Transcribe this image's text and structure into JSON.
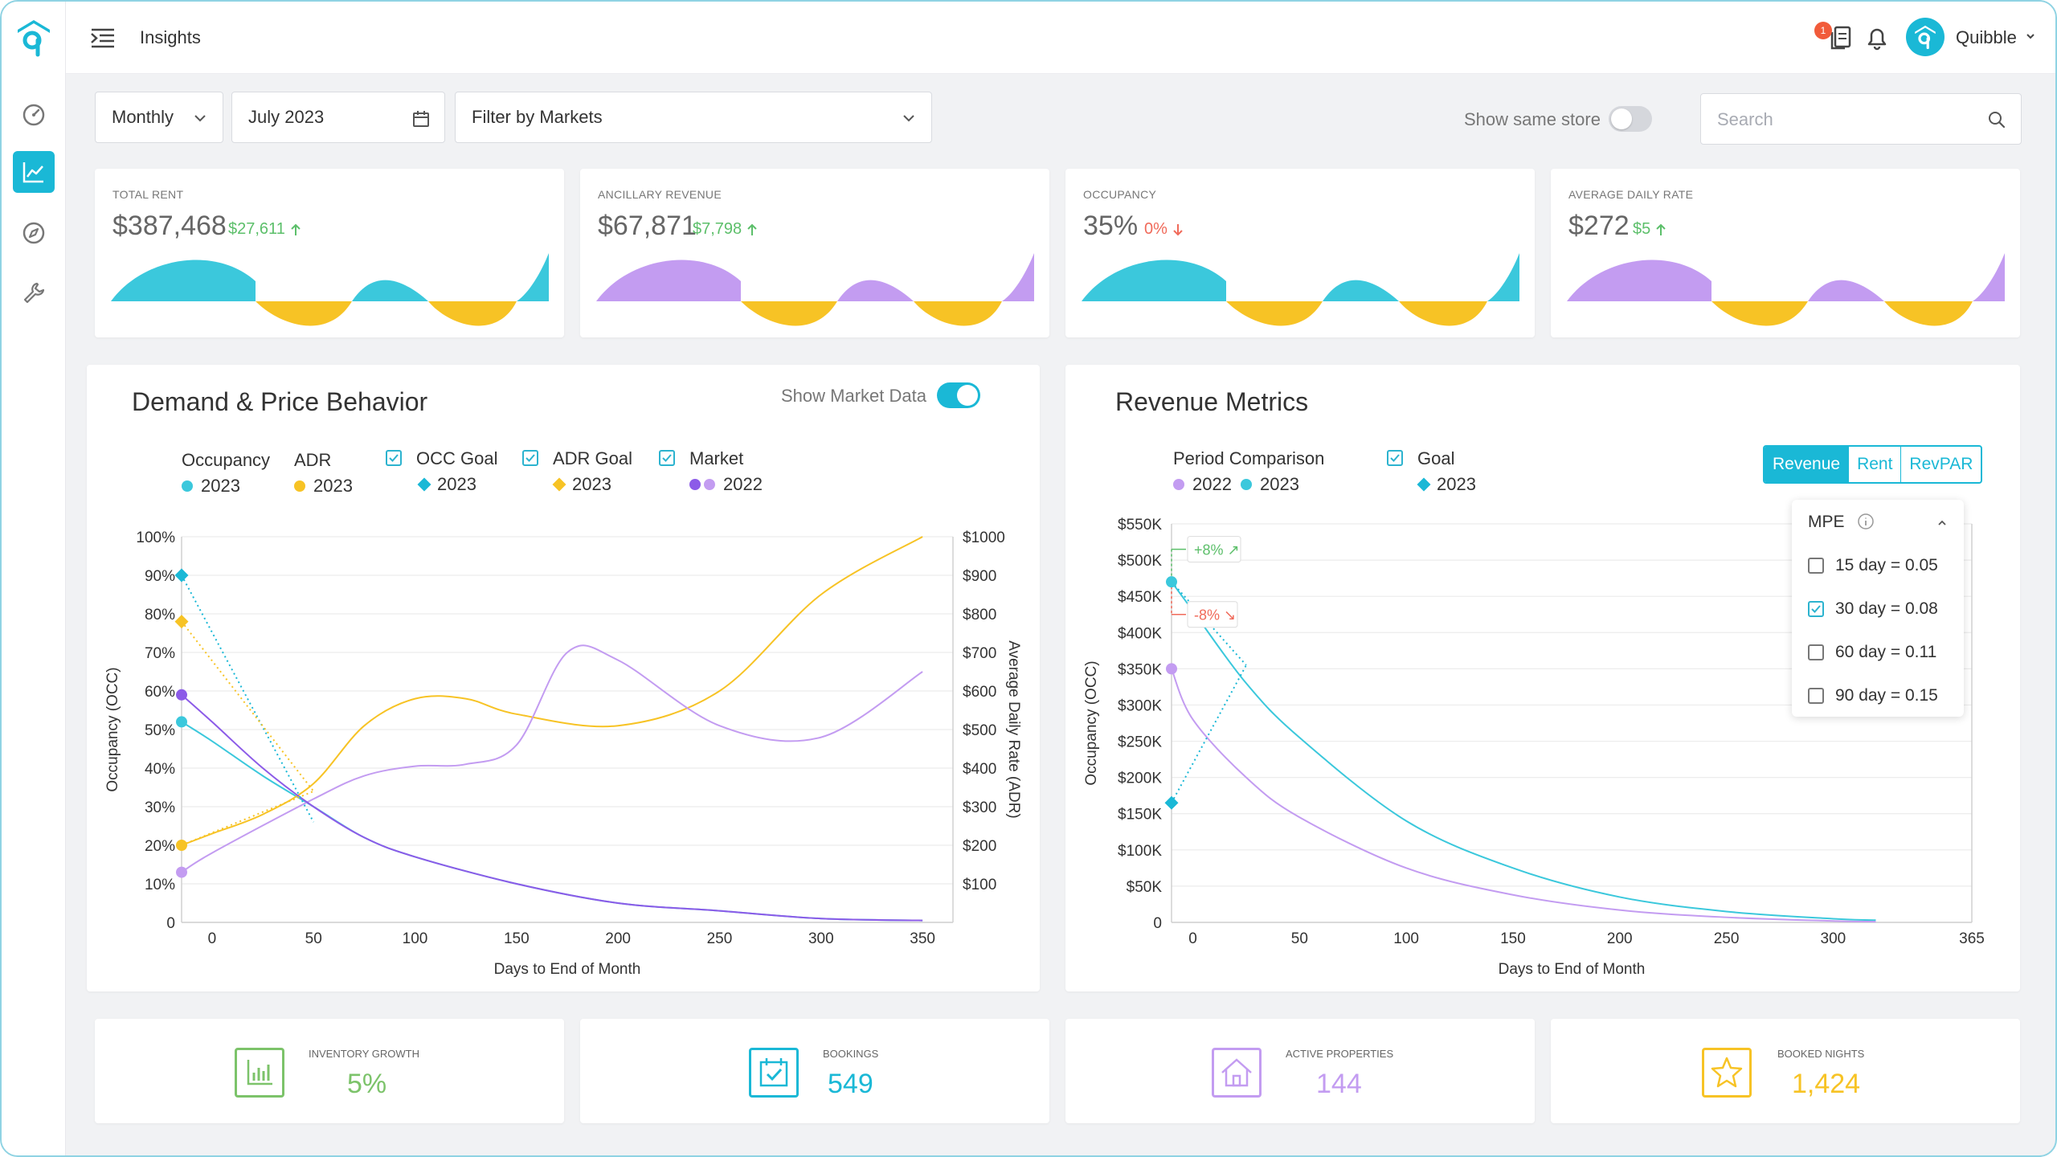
{
  "app": {
    "page_title": "Insights",
    "user_name": "Quibble",
    "notification_count": "1"
  },
  "filters": {
    "period": "Monthly",
    "date": "July 2023",
    "markets_placeholder": "Filter by Markets",
    "same_store_label": "Show same store",
    "same_store_on": false,
    "search_placeholder": "Search"
  },
  "kpis": [
    {
      "label": "TOTAL RENT",
      "value": "$387,468",
      "delta": "$27,611",
      "direction": "up",
      "delta_color": "#5cbf6a",
      "wave_color": "#3bc8dc"
    },
    {
      "label": "ANCILLARY REVENUE",
      "value": "$67,871",
      "delta": "$7,798",
      "direction": "up",
      "delta_color": "#5cbf6a",
      "wave_color": "#c39cf1"
    },
    {
      "label": "OCCUPANCY",
      "value": "35%",
      "delta": "0%",
      "direction": "down",
      "delta_color": "#f06a5a",
      "wave_color": "#3bc8dc"
    },
    {
      "label": "AVERAGE DAILY RATE",
      "value": "$272",
      "delta": "$5",
      "direction": "up",
      "delta_color": "#5cbf6a",
      "wave_color": "#c39cf1"
    }
  ],
  "demand": {
    "title": "Demand & Price Behavior",
    "market_toggle_label": "Show Market Data",
    "market_toggle_on": true,
    "legend": {
      "occupancy": "Occupancy",
      "occupancy_year": "2023",
      "adr": "ADR",
      "adr_year": "2023",
      "occ_goal": "OCC Goal",
      "occ_goal_year": "2023",
      "adr_goal": "ADR Goal",
      "adr_goal_year": "2023",
      "market": "Market",
      "market_year": "2022"
    }
  },
  "revenue": {
    "title": "Revenue Metrics",
    "legend": {
      "period": "Period Comparison",
      "year_a": "2022",
      "year_b": "2023",
      "goal": "Goal",
      "goal_year": "2023"
    },
    "tabs": [
      "Revenue",
      "Rent",
      "RevPAR"
    ],
    "active_tab": "Revenue",
    "mpe": {
      "title": "MPE",
      "options": [
        {
          "label": "15 day = 0.05",
          "checked": false
        },
        {
          "label": "30 day = 0.08",
          "checked": true
        },
        {
          "label": "60 day = 0.11",
          "checked": false
        },
        {
          "label": "90 day = 0.15",
          "checked": false
        }
      ]
    },
    "annotations": {
      "up": "+8%",
      "down": "-8%"
    }
  },
  "stats": [
    {
      "label": "INVENTORY GROWTH",
      "value": "5%",
      "color": "#7cc36a",
      "icon": "bar-chart-icon"
    },
    {
      "label": "BOOKINGS",
      "value": "549",
      "color": "#1ab8d6",
      "icon": "calendar-check-icon"
    },
    {
      "label": "ACTIVE PROPERTIES",
      "value": "144",
      "color": "#c39cf1",
      "icon": "house-icon"
    },
    {
      "label": "BOOKED NIGHTS",
      "value": "1,424",
      "color": "#f7c325",
      "icon": "star-icon"
    }
  ],
  "chart_data": [
    {
      "type": "line",
      "title": "Demand & Price Behavior",
      "xlabel": "Days to End of Month",
      "ylabel": "Occupancy (OCC)",
      "y2label": "Average Daily Rate (ADR)",
      "x_ticks": [
        "0",
        "50",
        "100",
        "150",
        "200",
        "250",
        "300",
        "350"
      ],
      "y_ticks": [
        "0",
        "10%",
        "20%",
        "30%",
        "40%",
        "50%",
        "60%",
        "70%",
        "80%",
        "90%",
        "100%"
      ],
      "y2_ticks": [
        "$100",
        "$200",
        "$300",
        "$400",
        "$500",
        "$600",
        "$700",
        "$800",
        "$900",
        "$1000"
      ],
      "xlim": [
        -15,
        365
      ],
      "ylim": [
        0,
        100
      ],
      "y2lim": [
        0,
        1000
      ],
      "series": [
        {
          "name": "Occupancy 2023",
          "color": "#3bc8dc",
          "axis": "left",
          "x": [
            -15,
            0,
            25,
            50,
            75,
            100,
            150,
            200,
            250,
            300,
            350
          ],
          "y": [
            52,
            47,
            38,
            30,
            22,
            17,
            10,
            5,
            3,
            1,
            0.5
          ]
        },
        {
          "name": "ADR 2023",
          "color": "#f7c325",
          "axis": "right",
          "x": [
            -15,
            0,
            25,
            50,
            75,
            100,
            125,
            150,
            200,
            250,
            300,
            350
          ],
          "y": [
            200,
            230,
            280,
            360,
            510,
            580,
            580,
            540,
            510,
            600,
            850,
            1000
          ]
        },
        {
          "name": "Market 2022 (ADR)",
          "color": "#c39cf1",
          "axis": "right",
          "x": [
            -15,
            0,
            50,
            75,
            100,
            125,
            150,
            175,
            200,
            250,
            300,
            350
          ],
          "y": [
            130,
            180,
            320,
            380,
            405,
            410,
            460,
            700,
            680,
            510,
            480,
            650
          ]
        },
        {
          "name": "Market 2022",
          "color": "#8c5be8",
          "axis": "left",
          "x": [
            -15,
            0,
            25,
            50,
            75,
            100,
            150,
            200,
            250,
            300,
            350
          ],
          "y": [
            59,
            52,
            40,
            30,
            22,
            17,
            10,
            5,
            3,
            1,
            0.5
          ]
        },
        {
          "name": "OCC Goal 2023",
          "color": "#1ab8d6",
          "axis": "left",
          "style": "dotted",
          "x": [
            -15,
            50
          ],
          "y": [
            90,
            26
          ]
        },
        {
          "name": "ADR Goal 2023",
          "color": "#f7c325",
          "axis": "left",
          "style": "dotted",
          "x": [
            -15,
            50
          ],
          "y": [
            78,
            34
          ]
        },
        {
          "name": "ADR Goal 2023 (low)",
          "color": "#f7c325",
          "axis": "left",
          "style": "dotted",
          "x": [
            -15,
            50
          ],
          "y": [
            20,
            34
          ]
        }
      ]
    },
    {
      "type": "line",
      "title": "Revenue Metrics",
      "xlabel": "Days to End of Month",
      "ylabel": "Occupancy (OCC)",
      "x_ticks": [
        "0",
        "50",
        "100",
        "150",
        "200",
        "250",
        "300",
        "365"
      ],
      "y_ticks": [
        "0",
        "$50K",
        "$100K",
        "$150K",
        "$200K",
        "$250K",
        "$300K",
        "$350K",
        "$400K",
        "$450K",
        "$500K",
        "$550K"
      ],
      "xlim": [
        -10,
        365
      ],
      "ylim": [
        0,
        550000
      ],
      "series": [
        {
          "name": "2023",
          "color": "#3bc8dc",
          "x": [
            -10,
            0,
            25,
            50,
            100,
            150,
            200,
            250,
            300,
            320
          ],
          "y": [
            470000,
            430000,
            330000,
            255000,
            140000,
            75000,
            35000,
            15000,
            5000,
            3000
          ]
        },
        {
          "name": "2022",
          "color": "#c39cf1",
          "x": [
            -10,
            0,
            25,
            50,
            100,
            150,
            200,
            250,
            300,
            320
          ],
          "y": [
            350000,
            280000,
            200000,
            145000,
            75000,
            38000,
            17000,
            7000,
            2000,
            1000
          ]
        },
        {
          "name": "Goal 2023",
          "color": "#1ab8d6",
          "style": "dotted",
          "x": [
            -10,
            25
          ],
          "y": [
            165000,
            355000
          ]
        },
        {
          "name": "Goal 2023 (top)",
          "color": "#1ab8d6",
          "style": "dotted",
          "x": [
            -10,
            25
          ],
          "y": [
            470000,
            355000
          ]
        }
      ]
    }
  ]
}
